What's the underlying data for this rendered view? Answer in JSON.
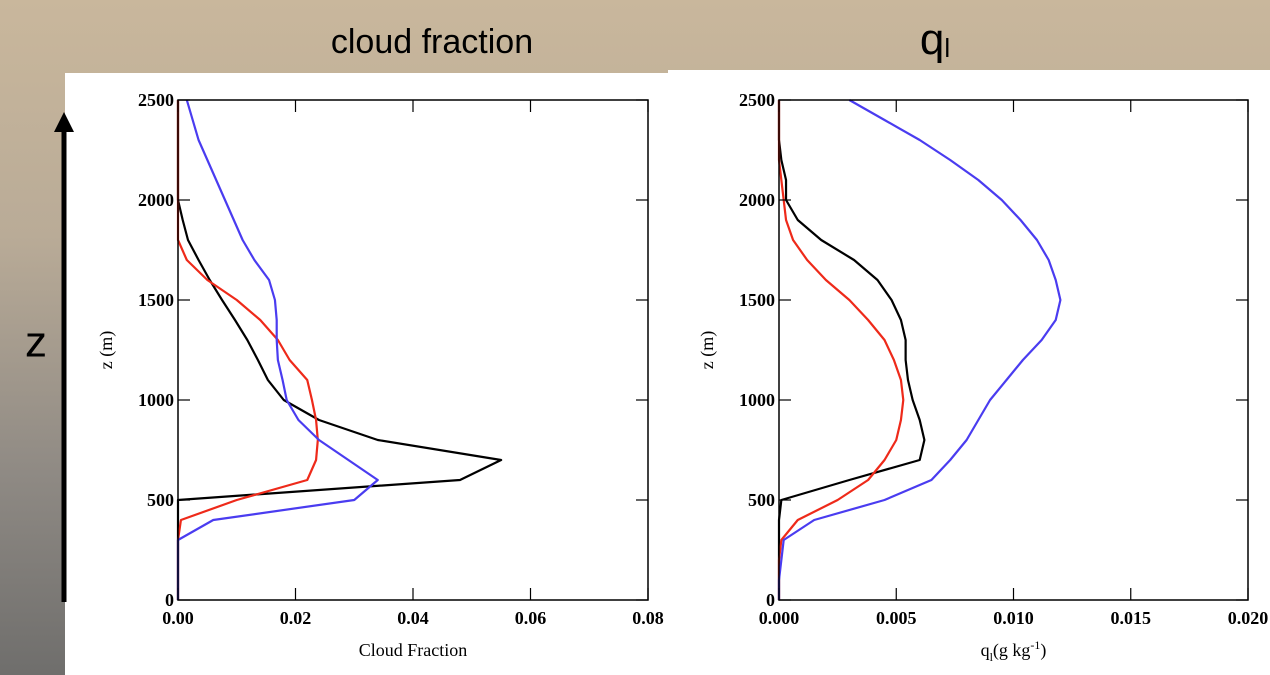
{
  "slide": {
    "title_left": "cloud fraction",
    "title_right": [
      "q",
      "l"
    ],
    "z_label": "z"
  },
  "chart_data": [
    {
      "type": "line",
      "x_label": "Cloud Fraction",
      "y_label": "z (m)",
      "y": [
        0,
        100,
        200,
        300,
        400,
        500,
        600,
        700,
        800,
        900,
        1000,
        1100,
        1200,
        1300,
        1400,
        1500,
        1600,
        1700,
        1800,
        1900,
        2000,
        2100,
        2200,
        2300,
        2400,
        2500
      ],
      "series": [
        {
          "color": "#000000",
          "values": [
            0,
            0,
            0,
            0,
            0,
            0,
            0.048,
            0.055,
            0.034,
            0.024,
            0.018,
            0.0153,
            0.0136,
            0.0118,
            0.0097,
            0.0075,
            0.0054,
            0.0035,
            0.0017,
            0.0008,
            0,
            0,
            0,
            0,
            0,
            0
          ]
        },
        {
          "color": "#ee2a1a",
          "values": [
            0,
            0,
            0,
            0,
            0.0005,
            0.01,
            0.022,
            0.0235,
            0.0238,
            0.0235,
            0.0228,
            0.022,
            0.019,
            0.017,
            0.014,
            0.01,
            0.005,
            0.0015,
            0,
            0,
            0,
            0,
            0,
            0,
            0,
            0
          ]
        },
        {
          "color": "#4a3cf0",
          "values": [
            0,
            0,
            0,
            0,
            0.006,
            0.03,
            0.034,
            0.029,
            0.024,
            0.0205,
            0.0185,
            0.0178,
            0.017,
            0.0168,
            0.0168,
            0.0165,
            0.0155,
            0.013,
            0.011,
            0.0095,
            0.008,
            0.0065,
            0.005,
            0.0035,
            0.0025,
            0.0015
          ]
        }
      ],
      "xlim": [
        0,
        0.08
      ],
      "xticks": [
        {
          "value": 0,
          "label": "0.00"
        },
        {
          "value": 0.02,
          "label": "0.02"
        },
        {
          "value": 0.04,
          "label": "0.04"
        },
        {
          "value": 0.06,
          "label": "0.06"
        },
        {
          "value": 0.08,
          "label": "0.08"
        }
      ],
      "ylim": [
        0,
        2500
      ],
      "yticks": [
        0,
        500,
        1000,
        1500,
        2000,
        2500
      ]
    },
    {
      "type": "line",
      "x_label": [
        "q",
        "l",
        "(g kg",
        "-1",
        ")"
      ],
      "y_label": "z (m)",
      "y": [
        0,
        100,
        200,
        300,
        400,
        500,
        600,
        700,
        800,
        900,
        1000,
        1100,
        1200,
        1300,
        1400,
        1500,
        1600,
        1700,
        1800,
        1900,
        2000,
        2100,
        2200,
        2300,
        2400,
        2500
      ],
      "series": [
        {
          "color": "#000000",
          "values": [
            0,
            0,
            0,
            0,
            0,
            0.0001,
            0.003,
            0.006,
            0.0062,
            0.006,
            0.0057,
            0.0055,
            0.0054,
            0.0054,
            0.0052,
            0.0048,
            0.0042,
            0.0032,
            0.0018,
            0.0008,
            0.0003,
            0.0003,
            0.0001,
            0,
            0,
            0
          ]
        },
        {
          "color": "#ee2a1a",
          "values": [
            0,
            0,
            0,
            0.0001,
            0.0008,
            0.0025,
            0.0038,
            0.0045,
            0.005,
            0.0052,
            0.0053,
            0.0052,
            0.0049,
            0.0045,
            0.0038,
            0.003,
            0.002,
            0.0012,
            0.0006,
            0.0003,
            0.0002,
            0.0001,
            0,
            0,
            0,
            0
          ]
        },
        {
          "color": "#4a3cf0",
          "values": [
            0,
            0,
            0.0001,
            0.0002,
            0.0015,
            0.0045,
            0.0065,
            0.0073,
            0.008,
            0.0085,
            0.009,
            0.0097,
            0.0104,
            0.0112,
            0.0118,
            0.012,
            0.0118,
            0.0115,
            0.011,
            0.0103,
            0.0095,
            0.0085,
            0.0073,
            0.006,
            0.0045,
            0.003
          ]
        }
      ],
      "xlim": [
        0,
        0.02
      ],
      "xticks": [
        {
          "value": 0,
          "label": "0.000"
        },
        {
          "value": 0.005,
          "label": "0.005"
        },
        {
          "value": 0.01,
          "label": "0.010"
        },
        {
          "value": 0.015,
          "label": "0.015"
        },
        {
          "value": 0.02,
          "label": "0.020"
        }
      ],
      "ylim": [
        0,
        2500
      ],
      "yticks": [
        0,
        500,
        1000,
        1500,
        2000,
        2500
      ]
    }
  ]
}
